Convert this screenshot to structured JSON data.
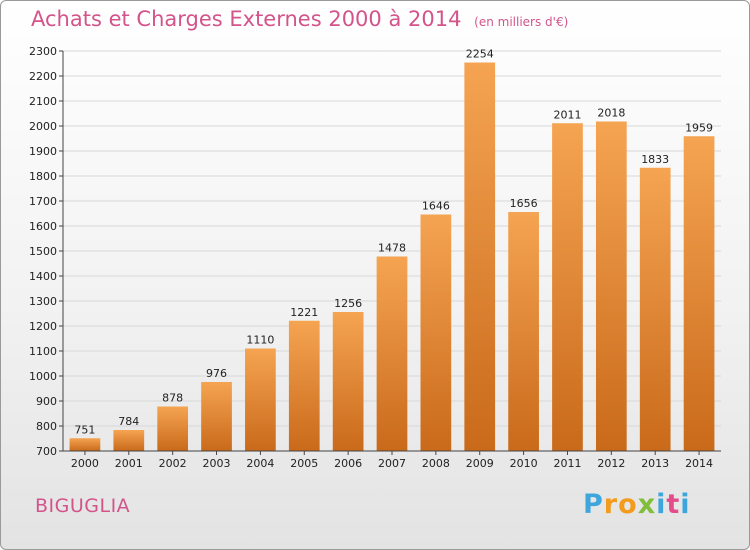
{
  "header": {
    "title": "Achats et Charges Externes 2000 à 2014",
    "unit": "(en milliers d'€)"
  },
  "commune": "BIGUGLIA",
  "logo": [
    "P",
    "r",
    "o",
    "x",
    "i",
    "t",
    "i"
  ],
  "colors": {
    "title": "#d3548a",
    "bar_top": "#f5a452",
    "bar_bottom": "#c96a1a",
    "grid": "#d8d8d8"
  },
  "chart_data": {
    "type": "bar",
    "categories": [
      "2000",
      "2001",
      "2002",
      "2003",
      "2004",
      "2005",
      "2006",
      "2007",
      "2008",
      "2009",
      "2010",
      "2011",
      "2012",
      "2013",
      "2014"
    ],
    "values": [
      751,
      784,
      878,
      976,
      1110,
      1221,
      1256,
      1478,
      1646,
      2254,
      1656,
      2011,
      2018,
      1833,
      1959
    ],
    "ylim": [
      700,
      2300
    ],
    "yticks": [
      700,
      800,
      900,
      1000,
      1100,
      1200,
      1300,
      1400,
      1500,
      1600,
      1700,
      1800,
      1900,
      2000,
      2100,
      2200,
      2300
    ],
    "grid": true,
    "title": "Achats et Charges Externes 2000 à 2014",
    "xlabel": "",
    "ylabel": ""
  }
}
